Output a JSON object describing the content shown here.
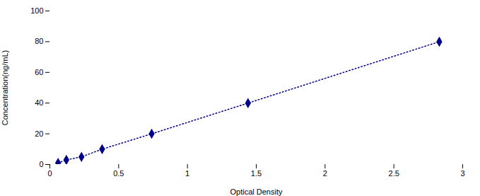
{
  "chart_data": {
    "type": "line",
    "xlabel": "Optical Density",
    "ylabel": "Concentration(ng/mL)",
    "x": [
      0.06,
      0.12,
      0.23,
      0.38,
      0.74,
      1.44,
      2.83
    ],
    "values": [
      1.0,
      3.0,
      5.0,
      10.0,
      20.0,
      40.0,
      80.0
    ],
    "color": "#00008B",
    "marker": "diamond",
    "line_style": "dotted",
    "xlim": [
      0,
      3.0
    ],
    "ylim": [
      0,
      100
    ],
    "xticks": [
      0,
      0.5,
      1,
      1.5,
      2,
      2.5,
      3
    ],
    "yticks": [
      0,
      20,
      40,
      60,
      80,
      100
    ],
    "grid": false
  }
}
